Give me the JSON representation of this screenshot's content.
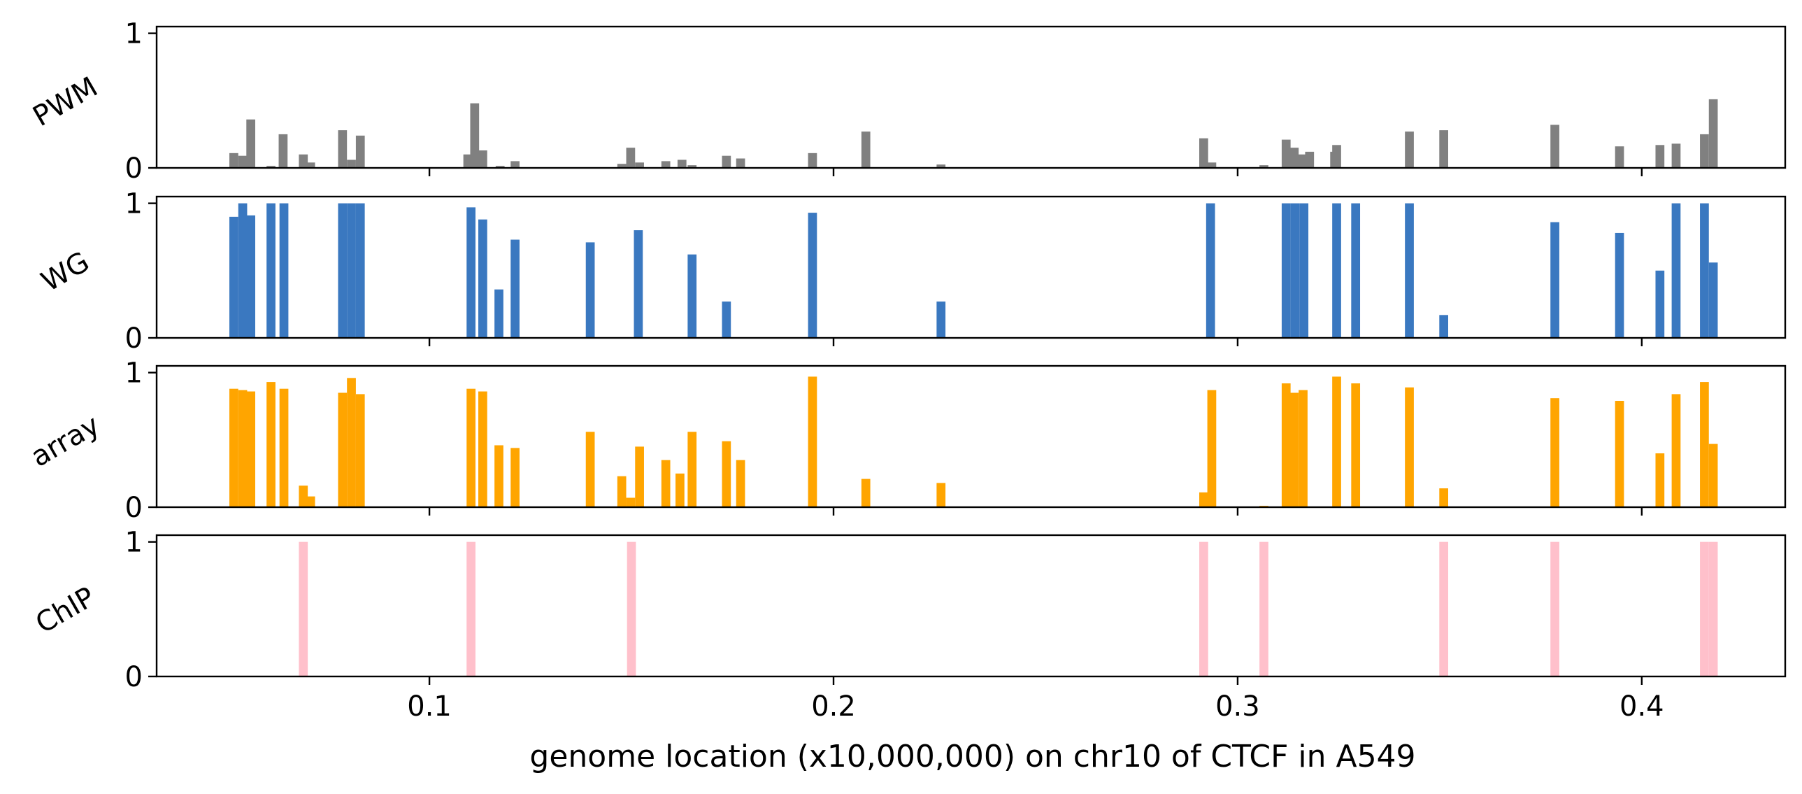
{
  "chart_data": {
    "type": "bar",
    "xlabel": "genome location (x10,000,000) on chr10 of CTCF in A549",
    "xlim": [
      0.0325,
      0.4355
    ],
    "ylim": [
      0,
      1.05
    ],
    "x_ticks": [
      0.1,
      0.2,
      0.3,
      0.4
    ],
    "x_tick_labels": [
      "0.1",
      "0.2",
      "0.3",
      "0.4"
    ],
    "y_ticks": [
      0,
      1
    ],
    "y_tick_labels": [
      "0",
      "1"
    ],
    "bin_width": 0.0022,
    "panels": [
      {
        "label": "PWM",
        "color": "#808080",
        "bars": [
          [
            0.0516,
            0.11
          ],
          [
            0.0538,
            0.09
          ],
          [
            0.0558,
            0.36
          ],
          [
            0.0608,
            0.015
          ],
          [
            0.0638,
            0.25
          ],
          [
            0.0688,
            0.1
          ],
          [
            0.0706,
            0.04
          ],
          [
            0.0785,
            0.28
          ],
          [
            0.0807,
            0.06
          ],
          [
            0.0829,
            0.24
          ],
          [
            0.1095,
            0.1
          ],
          [
            0.1112,
            0.48
          ],
          [
            0.1132,
            0.13
          ],
          [
            0.1175,
            0.015
          ],
          [
            0.1212,
            0.05
          ],
          [
            0.1476,
            0.03
          ],
          [
            0.1498,
            0.15
          ],
          [
            0.152,
            0.04
          ],
          [
            0.1585,
            0.05
          ],
          [
            0.1625,
            0.06
          ],
          [
            0.165,
            0.02
          ],
          [
            0.1735,
            0.09
          ],
          [
            0.177,
            0.07
          ],
          [
            0.1948,
            0.11
          ],
          [
            0.208,
            0.27
          ],
          [
            0.2266,
            0.025
          ],
          [
            0.2916,
            0.22
          ],
          [
            0.2936,
            0.04
          ],
          [
            0.3065,
            0.02
          ],
          [
            0.312,
            0.21
          ],
          [
            0.314,
            0.15
          ],
          [
            0.316,
            0.1
          ],
          [
            0.3178,
            0.12
          ],
          [
            0.324,
            0.12
          ],
          [
            0.3245,
            0.17
          ],
          [
            0.3425,
            0.27
          ],
          [
            0.351,
            0.28
          ],
          [
            0.3785,
            0.32
          ],
          [
            0.3945,
            0.16
          ],
          [
            0.4045,
            0.17
          ],
          [
            0.4085,
            0.18
          ],
          [
            0.4155,
            0.25
          ],
          [
            0.4177,
            0.51
          ]
        ]
      },
      {
        "label": "WG",
        "color": "#3a78c0",
        "bars": [
          [
            0.0516,
            0.9
          ],
          [
            0.0538,
            1.0
          ],
          [
            0.0558,
            0.91
          ],
          [
            0.0608,
            1.0
          ],
          [
            0.064,
            1.0
          ],
          [
            0.0785,
            1.0
          ],
          [
            0.0807,
            1.0
          ],
          [
            0.0829,
            1.0
          ],
          [
            0.1103,
            0.97
          ],
          [
            0.1132,
            0.88
          ],
          [
            0.1172,
            0.36
          ],
          [
            0.1212,
            0.73
          ],
          [
            0.1398,
            0.71
          ],
          [
            0.1517,
            0.8
          ],
          [
            0.165,
            0.62
          ],
          [
            0.1735,
            0.27
          ],
          [
            0.1948,
            0.93
          ],
          [
            0.2266,
            0.27
          ],
          [
            0.2933,
            1.0
          ],
          [
            0.312,
            1.0
          ],
          [
            0.3142,
            1.0
          ],
          [
            0.3164,
            1.0
          ],
          [
            0.3245,
            1.0
          ],
          [
            0.3292,
            1.0
          ],
          [
            0.3425,
            1.0
          ],
          [
            0.351,
            0.17
          ],
          [
            0.3785,
            0.86
          ],
          [
            0.3945,
            0.78
          ],
          [
            0.4045,
            0.5
          ],
          [
            0.4085,
            1.0
          ],
          [
            0.4155,
            1.0
          ],
          [
            0.4177,
            0.56
          ]
        ]
      },
      {
        "label": "array",
        "color": "#ffa500",
        "bars": [
          [
            0.0516,
            0.88
          ],
          [
            0.0538,
            0.87
          ],
          [
            0.0558,
            0.86
          ],
          [
            0.0608,
            0.93
          ],
          [
            0.064,
            0.88
          ],
          [
            0.0688,
            0.16
          ],
          [
            0.0706,
            0.08
          ],
          [
            0.0785,
            0.85
          ],
          [
            0.0807,
            0.96
          ],
          [
            0.0829,
            0.84
          ],
          [
            0.1103,
            0.88
          ],
          [
            0.1132,
            0.86
          ],
          [
            0.1172,
            0.46
          ],
          [
            0.1212,
            0.44
          ],
          [
            0.1398,
            0.56
          ],
          [
            0.1476,
            0.23
          ],
          [
            0.1498,
            0.07
          ],
          [
            0.152,
            0.45
          ],
          [
            0.1585,
            0.35
          ],
          [
            0.162,
            0.25
          ],
          [
            0.165,
            0.56
          ],
          [
            0.1735,
            0.49
          ],
          [
            0.177,
            0.35
          ],
          [
            0.1948,
            0.97
          ],
          [
            0.208,
            0.21
          ],
          [
            0.2266,
            0.18
          ],
          [
            0.2916,
            0.11
          ],
          [
            0.2936,
            0.87
          ],
          [
            0.3065,
            0.01
          ],
          [
            0.312,
            0.92
          ],
          [
            0.314,
            0.85
          ],
          [
            0.3162,
            0.87
          ],
          [
            0.3245,
            0.97
          ],
          [
            0.3292,
            0.92
          ],
          [
            0.3425,
            0.89
          ],
          [
            0.351,
            0.14
          ],
          [
            0.3785,
            0.81
          ],
          [
            0.3945,
            0.79
          ],
          [
            0.4045,
            0.4
          ],
          [
            0.4085,
            0.84
          ],
          [
            0.4155,
            0.93
          ],
          [
            0.4177,
            0.47
          ]
        ]
      },
      {
        "label": "ChIP",
        "color": "#ffc0cb",
        "bars": [
          [
            0.0688,
            1.0
          ],
          [
            0.1103,
            1.0
          ],
          [
            0.15,
            1.0
          ],
          [
            0.2916,
            1.0
          ],
          [
            0.3065,
            1.0
          ],
          [
            0.351,
            1.0
          ],
          [
            0.3785,
            1.0
          ],
          [
            0.4155,
            1.0
          ],
          [
            0.4177,
            1.0
          ]
        ]
      }
    ]
  }
}
